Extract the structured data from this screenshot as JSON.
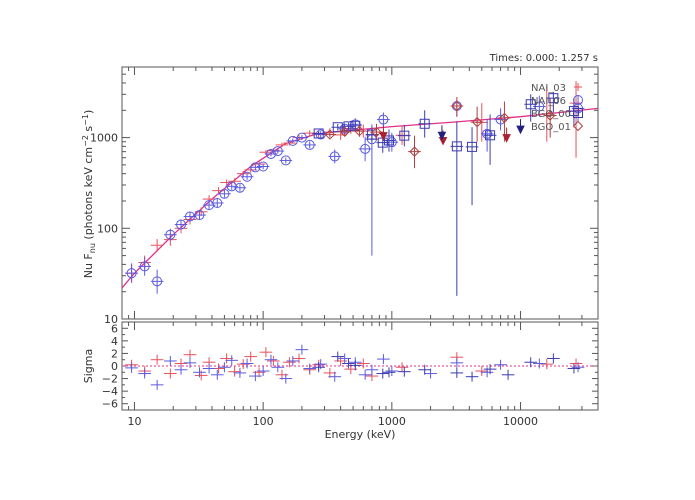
{
  "chart_data": [
    {
      "type": "scatter",
      "panel": "spectrum",
      "annotation": "Times: 0.000: 1.257 s",
      "ylabel_parts": {
        "main": "Nu F",
        "sub": "nu",
        "mid": " (photons keV cm",
        "sup1": "−2",
        "mid2": " s",
        "sup2": "−1",
        "end": ")"
      },
      "xscale": "log",
      "yscale": "log",
      "xlim": [
        8,
        40000
      ],
      "ylim": [
        10,
        6000
      ],
      "xticks": [
        10,
        100,
        1000,
        10000
      ],
      "xtick_labels": [
        "10",
        "100",
        "1000",
        "10000"
      ],
      "yticks": [
        10,
        100,
        1000
      ],
      "ytick_labels": [
        "10",
        "100",
        "1000"
      ],
      "legend": [
        {
          "label": "NAI_03",
          "color": "#e8505a",
          "marker": "plus"
        },
        {
          "label": "NAI_06",
          "color": "#5a5ae0",
          "marker": "circle"
        },
        {
          "label": "BGO_00",
          "color": "#3b3bb0",
          "marker": "square"
        },
        {
          "label": "BGO_01",
          "color": "#b04040",
          "marker": "diamond"
        }
      ],
      "model": {
        "name": "model",
        "color": "#e0308a",
        "x": [
          8,
          10,
          20,
          40,
          80,
          150,
          250,
          400,
          700,
          1000,
          3000,
          10000,
          40000
        ],
        "y": [
          22,
          32,
          85,
          210,
          480,
          860,
          1080,
          1180,
          1260,
          1320,
          1480,
          1700,
          2100
        ]
      },
      "series": [
        {
          "name": "NAI_03",
          "color": "#e8505a",
          "marker": "plus",
          "points": [
            [
              9.5,
              32,
              26,
              40
            ],
            [
              12,
              42,
              35,
              50
            ],
            [
              15,
              65,
              55,
              76
            ],
            [
              19,
              75,
              64,
              88
            ],
            [
              23,
              100,
              88,
              113
            ],
            [
              27,
              125,
              110,
              141
            ],
            [
              33,
              152,
              136,
              170
            ],
            [
              38,
              210,
              190,
              232
            ],
            [
              45,
              260,
              238,
              284
            ],
            [
              52,
              320,
              295,
              346
            ],
            [
              60,
              330,
              305,
              357
            ],
            [
              70,
              400,
              372,
              430
            ],
            [
              80,
              440,
              410,
              472
            ],
            [
              93,
              510,
              478,
              544
            ],
            [
              105,
              690,
              650,
              732
            ],
            [
              120,
              720,
              680,
              762
            ],
            [
              140,
              830,
              785,
              878
            ],
            [
              160,
              870,
              820,
              922
            ],
            [
              190,
              1000,
              940,
              1064
            ],
            [
              230,
              1120,
              1040,
              1205
            ],
            [
              270,
              1080,
              990,
              1178
            ],
            [
              330,
              1150,
              1040,
              1272
            ],
            [
              400,
              1070,
              940,
              1218
            ],
            [
              480,
              1260,
              1100,
              1443
            ],
            [
              600,
              1180,
              1000,
              1392
            ],
            [
              700,
              1070,
              890,
              1287
            ],
            [
              1200,
              1060,
              830,
              1354
            ],
            [
              5000,
              1470,
              900,
              2400
            ],
            [
              16000,
              1820,
              900,
              3700
            ],
            [
              27000,
              2400,
              600,
              4200
            ]
          ]
        },
        {
          "name": "NAI_06",
          "color": "#5a5ae0",
          "marker": "circle",
          "points": [
            [
              9.5,
              32,
              25,
              41
            ],
            [
              12,
              38,
              30,
              48
            ],
            [
              15,
              26,
              19,
              35
            ],
            [
              19,
              85,
              73,
              99
            ],
            [
              23,
              110,
              97,
              125
            ],
            [
              27,
              135,
              120,
              152
            ],
            [
              32,
              140,
              124,
              158
            ],
            [
              38,
              180,
              162,
              200
            ],
            [
              44,
              190,
              171,
              211
            ],
            [
              50,
              240,
              218,
              264
            ],
            [
              57,
              290,
              265,
              317
            ],
            [
              66,
              280,
              255,
              307
            ],
            [
              75,
              370,
              342,
              400
            ],
            [
              87,
              470,
              438,
              504
            ],
            [
              100,
              480,
              447,
              515
            ],
            [
              115,
              660,
              620,
              703
            ],
            [
              130,
              710,
              668,
              755
            ],
            [
              150,
              560,
              520,
              603
            ],
            [
              170,
              920,
              868,
              975
            ],
            [
              200,
              1000,
              940,
              1064
            ],
            [
              230,
              830,
              760,
              907
            ],
            [
              280,
              1080,
              990,
              1178
            ],
            [
              360,
              620,
              520,
              740
            ],
            [
              430,
              1250,
              1100,
              1420
            ],
            [
              520,
              1400,
              1200,
              1633
            ],
            [
              620,
              750,
              550,
              1020
            ],
            [
              700,
              960,
              50,
              1400
            ],
            [
              860,
              1580,
              1320,
              1890
            ],
            [
              1000,
              890,
              700,
              1130
            ],
            [
              3200,
              2230,
              1700,
              2600
            ],
            [
              5500,
              1100,
              700,
              1600
            ],
            [
              7000,
              1580,
              1200,
              2100
            ],
            [
              14000,
              2200,
              1700,
              2900
            ],
            [
              28000,
              2100,
              1500,
              2950
            ]
          ]
        },
        {
          "name": "BGO_00",
          "color": "#3b3bb0",
          "marker": "square",
          "points": [
            [
              270,
              1110,
              1060,
              1170
            ],
            [
              380,
              1300,
              1200,
              1410
            ],
            [
              460,
              1330,
              1210,
              1460
            ],
            [
              520,
              1350,
              1220,
              1500
            ],
            [
              700,
              1080,
              900,
              1300
            ],
            [
              850,
              880,
              680,
              1140
            ],
            [
              950,
              930,
              700,
              1230
            ],
            [
              1250,
              1050,
              800,
              1380
            ],
            [
              1800,
              1420,
              1000,
              2000
            ],
            [
              3200,
              800,
              18,
              1500
            ],
            [
              4200,
              790,
              180,
              1300
            ],
            [
              5800,
              1060,
              500,
              1800
            ],
            [
              12000,
              2330,
              1500,
              3000
            ],
            [
              18000,
              2720,
              1900,
              3200
            ],
            [
              26000,
              1960,
              1300,
              2700
            ]
          ]
        },
        {
          "name": "BGO_01",
          "color": "#b04040",
          "marker": "diamond",
          "points": [
            [
              330,
              1080,
              1000,
              1168
            ],
            [
              430,
              1160,
              1050,
              1280
            ],
            [
              560,
              1180,
              1020,
              1370
            ],
            [
              760,
              1150,
              930,
              1420
            ],
            [
              1500,
              700,
              460,
              1050
            ],
            [
              3200,
              2230,
              1700,
              2800
            ],
            [
              4600,
              1480,
              900,
              2200
            ],
            [
              7500,
              1650,
              900,
              2500
            ],
            [
              17000,
              1750,
              1000,
              2700
            ]
          ]
        },
        {
          "name": "upper limits",
          "color": "#aa2030",
          "marker": "triangle",
          "points": [
            [
              860,
              1050
            ],
            [
              2500,
              930
            ],
            [
              7800,
              1000
            ]
          ]
        },
        {
          "name": "upper limits blue",
          "color": "#202080",
          "marker": "triangle",
          "points": [
            [
              2450,
              1060
            ],
            [
              10000,
              1240
            ]
          ]
        }
      ]
    },
    {
      "type": "scatter",
      "panel": "residuals",
      "ylabel": "Sigma",
      "xlabel": "Energy (keV)",
      "xscale": "log",
      "xlim": [
        8,
        40000
      ],
      "ylim": [
        -7,
        7
      ],
      "yticks": [
        -6,
        -4,
        -2,
        0,
        2,
        4,
        6
      ],
      "ytick_labels": [
        "−6",
        "−4",
        "−2",
        "0",
        "2",
        "4",
        "6"
      ],
      "series": [
        {
          "name": "NAI_03",
          "color": "#e8505a",
          "points": [
            [
              9.5,
              0.2
            ],
            [
              12,
              -0.8
            ],
            [
              15,
              1.0
            ],
            [
              19,
              -1.2
            ],
            [
              23,
              0.4
            ],
            [
              27,
              1.8
            ],
            [
              33,
              -1.5
            ],
            [
              38,
              0.6
            ],
            [
              45,
              -0.4
            ],
            [
              52,
              1.2
            ],
            [
              60,
              -0.9
            ],
            [
              70,
              0.3
            ],
            [
              80,
              1.5
            ],
            [
              93,
              -1.0
            ],
            [
              105,
              2.2
            ],
            [
              120,
              0.8
            ],
            [
              140,
              -1.4
            ],
            [
              160,
              0.6
            ],
            [
              190,
              1.2
            ],
            [
              230,
              -0.6
            ],
            [
              270,
              0.2
            ],
            [
              330,
              -1.1
            ],
            [
              400,
              0.8
            ],
            [
              480,
              -0.5
            ],
            [
              600,
              0.4
            ],
            [
              700,
              -1.6
            ],
            [
              1200,
              -0.2
            ],
            [
              3200,
              1.4
            ],
            [
              5000,
              -0.8
            ],
            [
              16000,
              0.3
            ],
            [
              27000,
              0.4
            ]
          ]
        },
        {
          "name": "NAI_06",
          "color": "#5a5ae0",
          "points": [
            [
              9.5,
              -0.3
            ],
            [
              12,
              -1.2
            ],
            [
              15,
              -3.0
            ],
            [
              19,
              0.8
            ],
            [
              23,
              -0.6
            ],
            [
              27,
              0.5
            ],
            [
              32,
              -1.0
            ],
            [
              38,
              -0.4
            ],
            [
              44,
              -1.4
            ],
            [
              50,
              -0.2
            ],
            [
              57,
              0.9
            ],
            [
              66,
              -1.1
            ],
            [
              75,
              0.4
            ],
            [
              87,
              -1.6
            ],
            [
              100,
              -0.8
            ],
            [
              115,
              1.0
            ],
            [
              130,
              -0.2
            ],
            [
              150,
              -2.0
            ],
            [
              170,
              0.8
            ],
            [
              200,
              2.6
            ],
            [
              230,
              -0.4
            ],
            [
              280,
              0.3
            ],
            [
              360,
              -1.7
            ],
            [
              430,
              1.2
            ],
            [
              520,
              0.6
            ],
            [
              620,
              -1.4
            ],
            [
              700,
              -0.6
            ],
            [
              860,
              1.1
            ],
            [
              1000,
              -0.8
            ],
            [
              2000,
              -1.2
            ],
            [
              3200,
              0.5
            ],
            [
              5500,
              -1.0
            ],
            [
              7000,
              0.2
            ],
            [
              14000,
              0.4
            ],
            [
              28000,
              -0.2
            ]
          ]
        },
        {
          "name": "BGO",
          "color": "#3b3bb0",
          "points": [
            [
              270,
              -0.2
            ],
            [
              380,
              1.5
            ],
            [
              460,
              0.4
            ],
            [
              520,
              0.1
            ],
            [
              850,
              -1.2
            ],
            [
              950,
              -1.0
            ],
            [
              1250,
              -0.9
            ],
            [
              1800,
              -0.6
            ],
            [
              3200,
              -1.1
            ],
            [
              4200,
              -1.7
            ],
            [
              5800,
              -0.5
            ],
            [
              8000,
              -1.4
            ],
            [
              12000,
              0.6
            ],
            [
              18000,
              1.2
            ],
            [
              26000,
              -0.4
            ]
          ]
        }
      ]
    }
  ]
}
